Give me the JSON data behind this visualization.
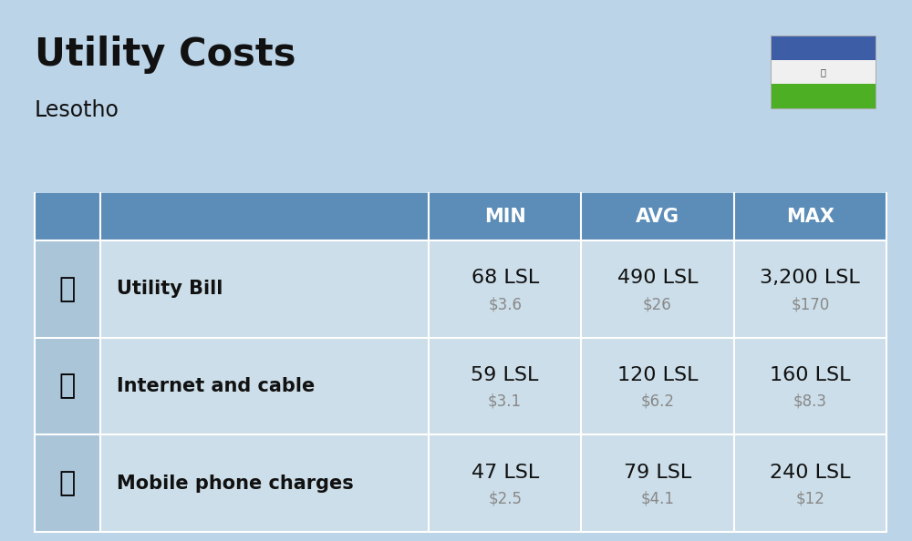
{
  "title": "Utility Costs",
  "subtitle": "Lesotho",
  "background_color": "#bcd4e8",
  "header_bg_color": "#5b8db8",
  "header_text_color": "#ffffff",
  "row_bg_color": "#ccdee9",
  "icon_col_bg_color": "#aac5d8",
  "col_headers": [
    "MIN",
    "AVG",
    "MAX"
  ],
  "rows": [
    {
      "label": "Utility Bill",
      "min_lsl": "68 LSL",
      "min_usd": "$3.6",
      "avg_lsl": "490 LSL",
      "avg_usd": "$26",
      "max_lsl": "3,200 LSL",
      "max_usd": "$170"
    },
    {
      "label": "Internet and cable",
      "min_lsl": "59 LSL",
      "min_usd": "$3.1",
      "avg_lsl": "120 LSL",
      "avg_usd": "$6.2",
      "max_lsl": "160 LSL",
      "max_usd": "$8.3"
    },
    {
      "label": "Mobile phone charges",
      "min_lsl": "47 LSL",
      "min_usd": "$2.5",
      "avg_lsl": "79 LSL",
      "avg_usd": "$4.1",
      "max_lsl": "240 LSL",
      "max_usd": "$12"
    }
  ],
  "title_fontsize": 30,
  "subtitle_fontsize": 17,
  "label_fontsize": 15,
  "value_fontsize": 16,
  "subvalue_fontsize": 12,
  "header_fontsize": 15,
  "flag_colors": [
    "#3d5da7",
    "#f0f0f0",
    "#4caf24"
  ],
  "divider_color": "#ffffff",
  "text_color": "#111111",
  "usd_color": "#888888"
}
